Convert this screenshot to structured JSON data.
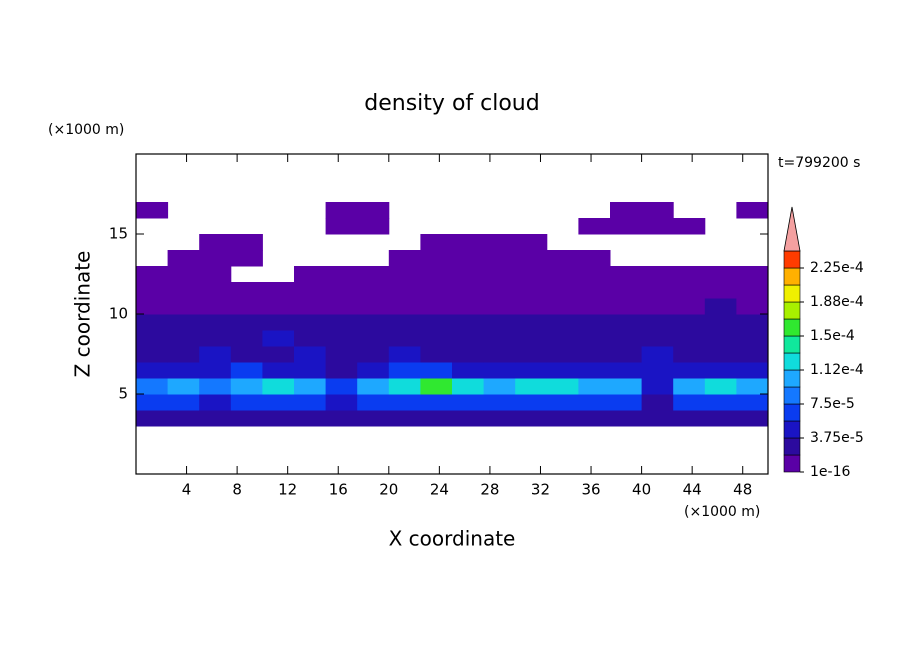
{
  "chart_data": {
    "type": "contour",
    "title": "density of cloud",
    "x_label": "X coordinate",
    "y_label": "Z coordinate",
    "x_unit": "(×1000 m)",
    "y_unit": "(×1000 m)",
    "annotation": "t=799200 s",
    "xlim": [
      0,
      50
    ],
    "ylim": [
      0,
      20
    ],
    "xticks": [
      4,
      8,
      12,
      16,
      20,
      24,
      28,
      32,
      36,
      40,
      44,
      48
    ],
    "yticks": [
      5,
      10,
      15
    ],
    "xbins": [
      0,
      2.5,
      5,
      7.5,
      10,
      12.5,
      15,
      17.5,
      20,
      22.5,
      25,
      27.5,
      30,
      32.5,
      35,
      37.5,
      40,
      42.5,
      45,
      47.5,
      50
    ],
    "ybins": [
      3,
      4,
      5,
      6,
      7,
      8,
      9,
      10,
      11,
      12,
      13,
      14,
      15,
      16,
      17
    ],
    "values": [
      [
        2e-05,
        2e-05,
        2e-05,
        2e-05,
        2e-05,
        2e-05,
        2e-05,
        2e-05,
        2e-05,
        2e-05,
        2e-05,
        2e-05,
        2e-05,
        2e-05,
        2e-05,
        2e-05,
        2e-05,
        2e-05,
        2e-05,
        2e-05
      ],
      [
        6e-05,
        6e-05,
        5e-05,
        6e-05,
        6e-05,
        6e-05,
        4e-05,
        6e-05,
        7e-05,
        7e-05,
        6e-05,
        6e-05,
        6e-05,
        6e-05,
        6e-05,
        6e-05,
        3e-05,
        6e-05,
        6e-05,
        6e-05
      ],
      [
        9e-05,
        0.0001,
        8e-05,
        0.00011,
        0.00012,
        0.00011,
        6e-05,
        0.00011,
        0.00013,
        0.00015,
        0.00012,
        0.00011,
        0.00012,
        0.00012,
        0.00011,
        0.0001,
        5e-05,
        0.00011,
        0.00012,
        0.00011
      ],
      [
        4e-05,
        5e-05,
        4e-05,
        6e-05,
        5e-05,
        4e-05,
        3e-05,
        5e-05,
        6e-05,
        7e-05,
        5e-05,
        5e-05,
        4e-05,
        5e-05,
        4e-05,
        4e-05,
        5e-05,
        4e-05,
        4e-05,
        4e-05
      ],
      [
        3e-05,
        3e-05,
        4e-05,
        3e-05,
        3e-05,
        4e-05,
        3e-05,
        3e-05,
        4e-05,
        3e-05,
        3e-05,
        3e-05,
        3e-05,
        3e-05,
        3e-05,
        3e-05,
        4e-05,
        3e-05,
        3e-05,
        3e-05
      ],
      [
        2.5e-05,
        3e-05,
        2.5e-05,
        3e-05,
        4e-05,
        2.5e-05,
        2.5e-05,
        3e-05,
        2.5e-05,
        2.5e-05,
        3e-05,
        2.5e-05,
        2.5e-05,
        2.5e-05,
        3e-05,
        2.5e-05,
        2.5e-05,
        2.5e-05,
        3e-05,
        2.5e-05
      ],
      [
        2e-05,
        2e-05,
        2e-05,
        2e-05,
        2e-05,
        2e-05,
        2e-05,
        2e-05,
        2e-05,
        2e-05,
        2e-05,
        2e-05,
        2e-05,
        2e-05,
        2e-05,
        2e-05,
        2e-05,
        2e-05,
        2e-05,
        2e-05
      ],
      [
        1.5e-05,
        1.5e-05,
        1.5e-05,
        1.5e-05,
        1.5e-05,
        1.5e-05,
        1.5e-05,
        1.5e-05,
        1.5e-05,
        1.5e-05,
        1.5e-05,
        1.5e-05,
        1.5e-05,
        1.5e-05,
        1.5e-05,
        1.5e-05,
        1.5e-05,
        1.5e-05,
        2e-05,
        1.5e-05
      ],
      [
        5e-06,
        5e-06,
        5e-06,
        5e-06,
        3e-06,
        5e-06,
        5e-06,
        5e-06,
        5e-06,
        5e-06,
        5e-06,
        5e-06,
        5e-06,
        5e-06,
        5e-06,
        5e-06,
        5e-06,
        5e-06,
        5e-06,
        5e-06
      ],
      [
        3e-06,
        3e-06,
        3e-06,
        null,
        null,
        3e-06,
        3e-06,
        3e-06,
        3e-06,
        3e-06,
        3e-06,
        3e-06,
        3e-06,
        3e-06,
        3e-06,
        3e-06,
        3e-06,
        3e-06,
        3e-06,
        3e-06
      ],
      [
        null,
        3e-06,
        3e-06,
        3e-06,
        null,
        null,
        null,
        null,
        3e-06,
        3e-06,
        3e-06,
        3e-06,
        3e-06,
        3e-06,
        3e-06,
        null,
        null,
        null,
        null,
        null
      ],
      [
        null,
        null,
        3e-06,
        3e-06,
        null,
        null,
        null,
        null,
        null,
        3e-06,
        3e-06,
        3e-06,
        3e-06,
        null,
        null,
        null,
        null,
        null,
        null,
        null
      ],
      [
        null,
        null,
        null,
        null,
        null,
        null,
        3e-06,
        3e-06,
        null,
        null,
        null,
        null,
        null,
        null,
        3e-06,
        3e-06,
        3e-06,
        3e-06,
        null,
        null
      ],
      [
        3e-06,
        null,
        null,
        null,
        null,
        null,
        3e-06,
        3e-06,
        null,
        null,
        null,
        null,
        null,
        null,
        null,
        3e-06,
        3e-06,
        null,
        null,
        3e-06
      ]
    ],
    "levels": [
      1e-16,
      1.875e-05,
      3.75e-05,
      5.625e-05,
      7.5e-05,
      9.375e-05,
      0.0001125,
      0.00013125,
      0.00015,
      0.00016875,
      0.0001875,
      0.00020625,
      0.000225,
      0.00024375
    ],
    "colors": [
      "#5a00a6",
      "#2c0a9e",
      "#1a14c4",
      "#0a3cf0",
      "#1478ff",
      "#1ea8ff",
      "#10dcdc",
      "#10e89c",
      "#30e830",
      "#a8f000",
      "#f0f000",
      "#ffb000",
      "#ff3c00"
    ],
    "extend_color": "#f4a0a0",
    "colorbar_ticks": [
      {
        "value": 1e-16,
        "label": "1e-16"
      },
      {
        "value": 3.75e-05,
        "label": "3.75e-5"
      },
      {
        "value": 7.5e-05,
        "label": "7.5e-5"
      },
      {
        "value": 0.0001125,
        "label": "1.12e-4"
      },
      {
        "value": 0.00015,
        "label": "1.5e-4"
      },
      {
        "value": 0.0001875,
        "label": "1.88e-4"
      },
      {
        "value": 0.000225,
        "label": "2.25e-4"
      }
    ]
  }
}
